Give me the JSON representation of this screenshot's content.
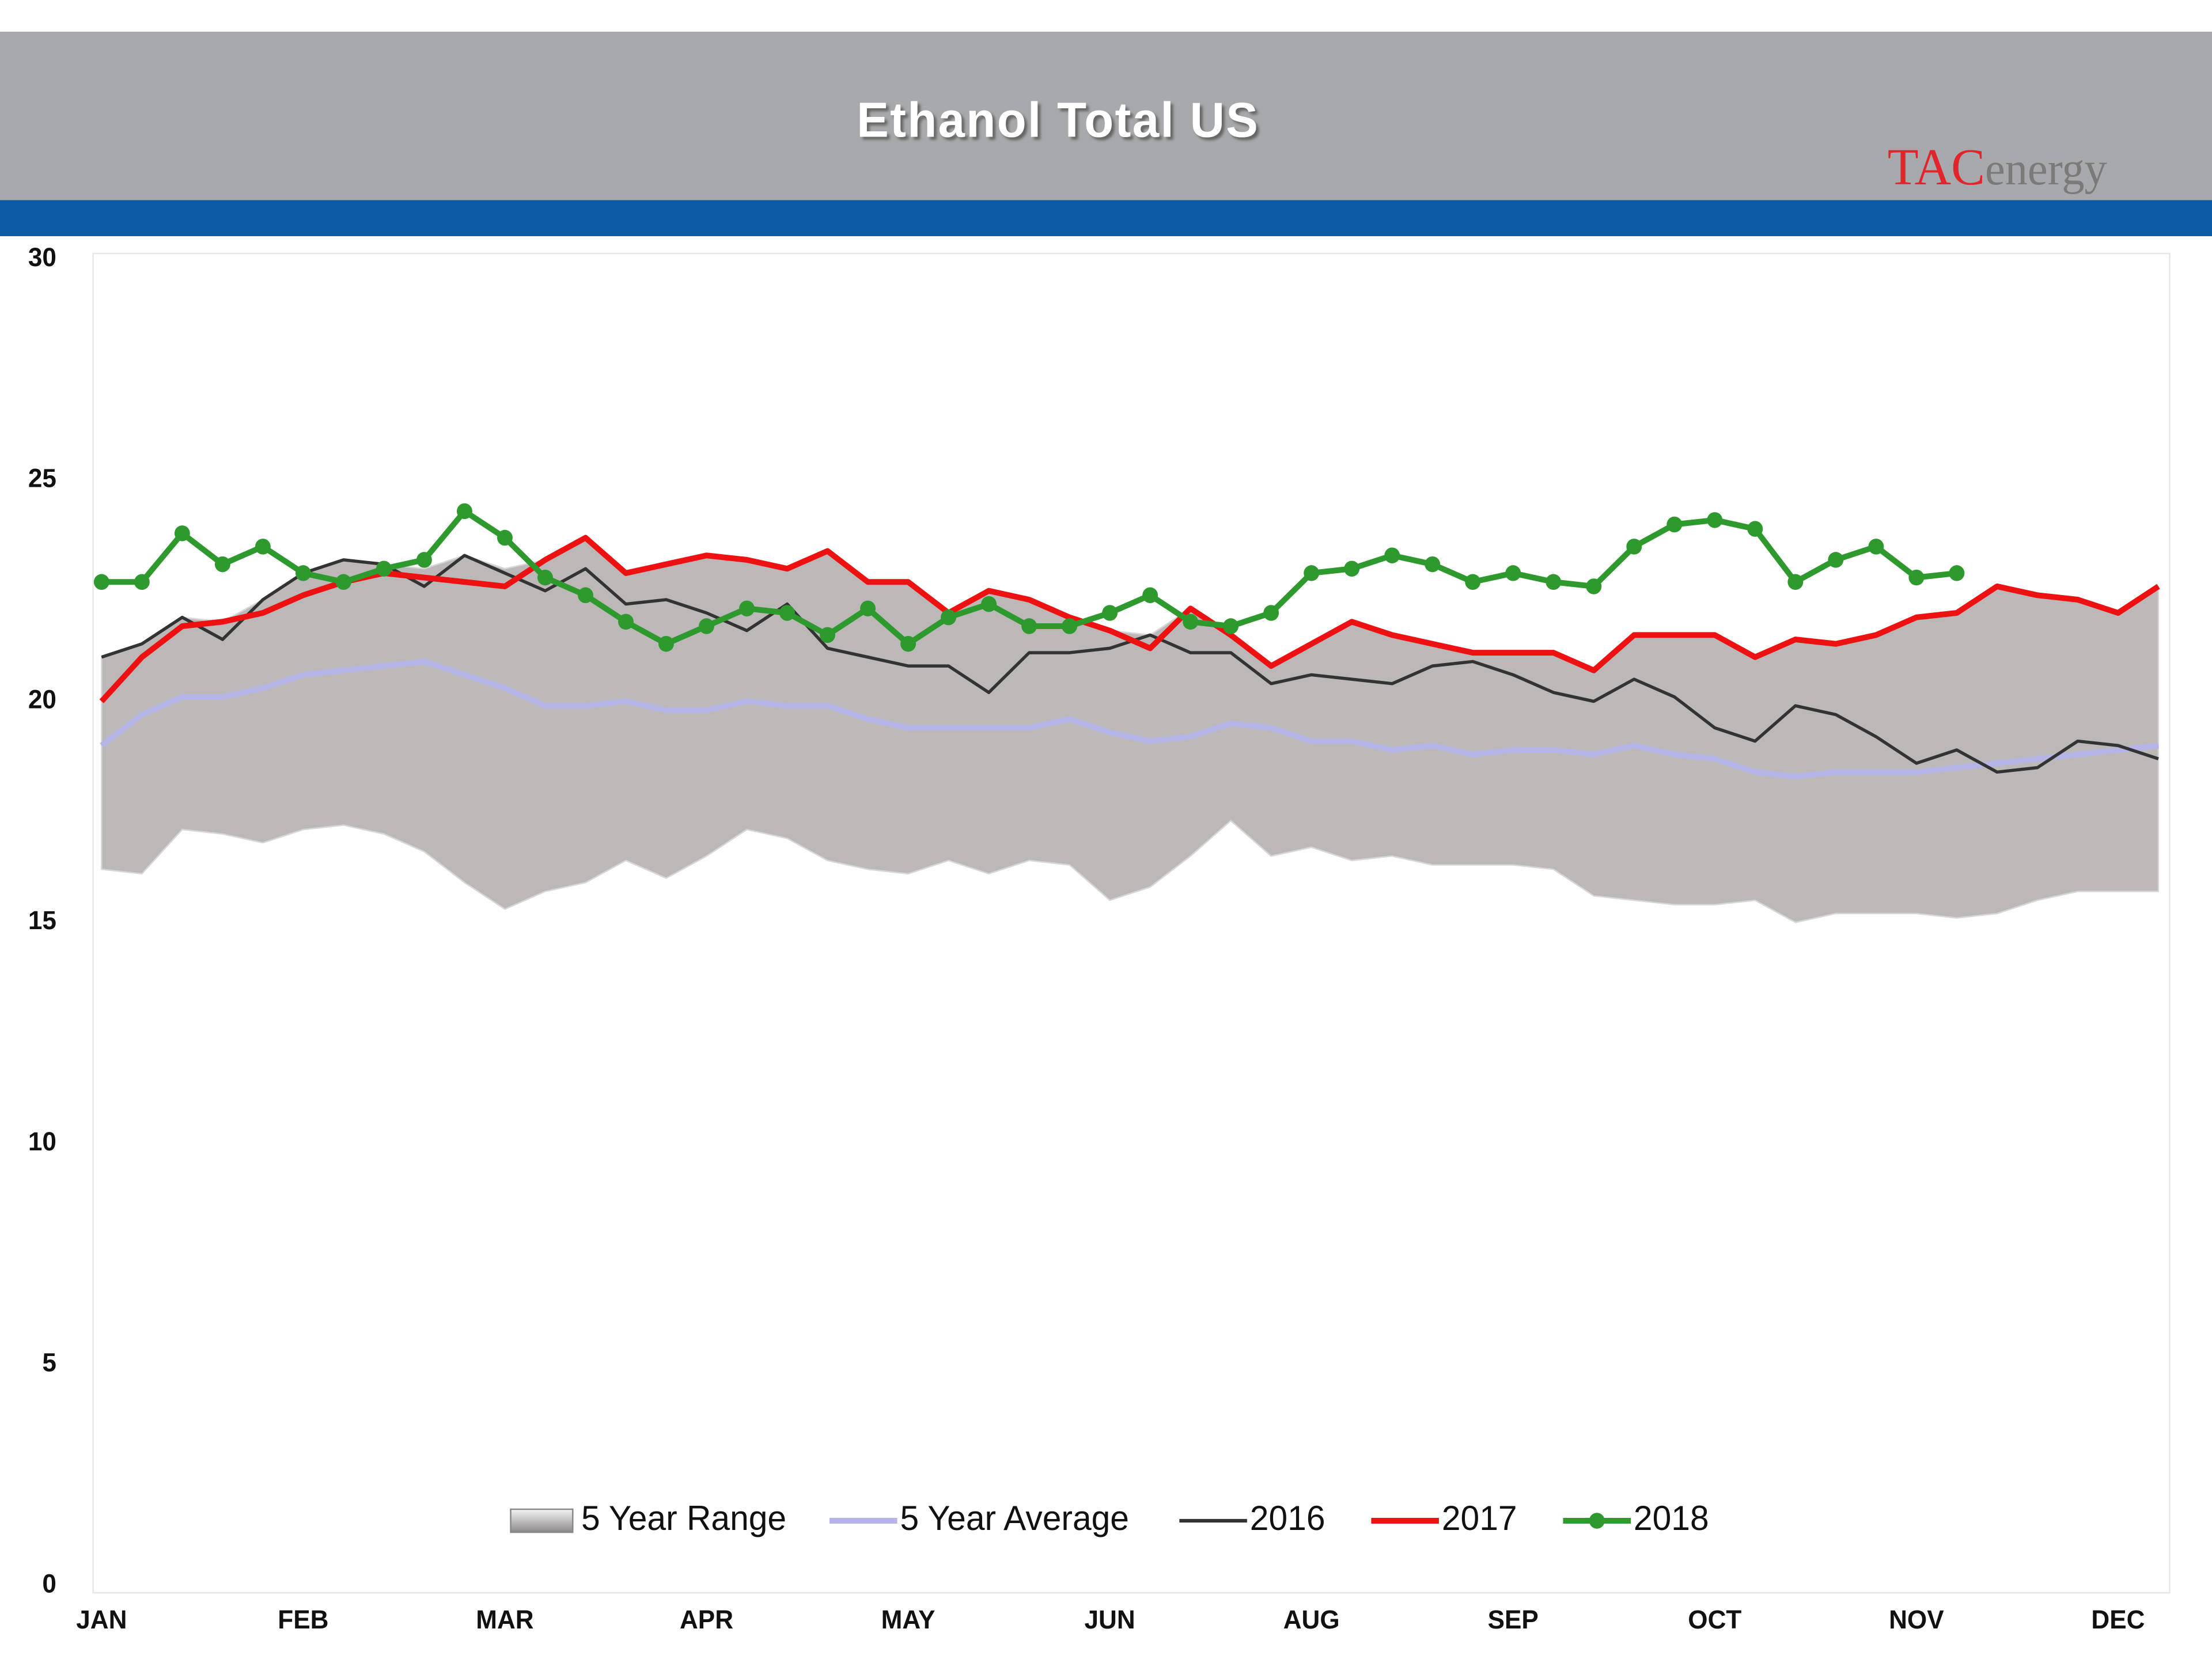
{
  "chart_data": {
    "type": "line",
    "title": "Ethanol Total US",
    "logo": {
      "red": "TAC",
      "gray": "energy"
    },
    "categories": [
      "JAN",
      null,
      null,
      null,
      null,
      "FEB",
      null,
      null,
      null,
      null,
      "MAR",
      null,
      null,
      null,
      null,
      "APR",
      null,
      null,
      null,
      null,
      "MAY",
      null,
      null,
      null,
      null,
      "JUN",
      null,
      null,
      null,
      null,
      "AUG",
      null,
      null,
      null,
      null,
      "SEP",
      null,
      null,
      null,
      null,
      "OCT",
      null,
      null,
      null,
      null,
      "NOV",
      null,
      null,
      null,
      null,
      "DEC",
      null
    ],
    "ylim": [
      0,
      30
    ],
    "yticks": [
      0,
      5,
      10,
      15,
      20,
      25,
      30
    ],
    "grid": false,
    "legend": "bottom",
    "series": [
      {
        "name": "5 Year Range",
        "kind": "range",
        "color": "#bcb8b8",
        "values": [
          21.0,
          21.3,
          21.9,
          21.8,
          22.3,
          22.9,
          23.2,
          23.1,
          23.0,
          23.3,
          23.0,
          23.2,
          23.7,
          22.9,
          23.1,
          23.3,
          23.2,
          23.0,
          23.4,
          22.7,
          22.7,
          22.0,
          22.5,
          22.3,
          21.9,
          21.6,
          21.5,
          22.1,
          21.5,
          20.8,
          21.3,
          21.8,
          21.5,
          21.3,
          21.1,
          21.1,
          21.1,
          20.7,
          21.5,
          21.5,
          21.5,
          21.0,
          21.4,
          21.3,
          21.5,
          21.9,
          22.0,
          22.6,
          22.4,
          22.3,
          22.0,
          22.6
        ],
        "low": [
          16.2,
          16.1,
          17.1,
          17.0,
          16.8,
          17.1,
          17.2,
          17.0,
          16.6,
          15.9,
          15.3,
          15.7,
          15.9,
          16.4,
          16.0,
          16.5,
          17.1,
          16.9,
          16.4,
          16.2,
          16.1,
          16.4,
          16.1,
          16.4,
          16.3,
          15.5,
          15.8,
          16.5,
          17.3,
          16.5,
          16.7,
          16.4,
          16.5,
          16.3,
          16.3,
          16.3,
          16.2,
          15.6,
          15.5,
          15.4,
          15.4,
          15.5,
          15.0,
          15.2,
          15.2,
          15.2,
          15.1,
          15.2,
          15.5,
          15.7,
          15.7,
          15.7
        ]
      },
      {
        "name": "5 Year Average",
        "color": "#b4b4e6",
        "values": [
          19.0,
          19.7,
          20.1,
          20.1,
          20.3,
          20.6,
          20.7,
          20.8,
          20.9,
          20.6,
          20.3,
          19.9,
          19.9,
          20.0,
          19.8,
          19.8,
          20.0,
          19.9,
          19.9,
          19.6,
          19.4,
          19.4,
          19.4,
          19.4,
          19.6,
          19.3,
          19.1,
          19.2,
          19.5,
          19.4,
          19.1,
          19.1,
          18.9,
          19.0,
          18.8,
          18.9,
          18.9,
          18.8,
          19.0,
          18.8,
          18.7,
          18.4,
          18.3,
          18.4,
          18.4,
          18.4,
          18.5,
          18.6,
          18.7,
          18.8,
          18.9,
          19.0
        ]
      },
      {
        "name": "2016",
        "color": "#333333",
        "values": [
          21.0,
          21.3,
          21.9,
          21.4,
          22.3,
          22.9,
          23.2,
          23.1,
          22.6,
          23.3,
          22.9,
          22.5,
          23.0,
          22.2,
          22.3,
          22.0,
          21.6,
          22.2,
          21.2,
          21.0,
          20.8,
          20.8,
          20.2,
          21.1,
          21.1,
          21.2,
          21.5,
          21.1,
          21.1,
          20.4,
          20.6,
          20.5,
          20.4,
          20.8,
          20.9,
          20.6,
          20.2,
          20.0,
          20.5,
          20.1,
          19.4,
          19.1,
          19.9,
          19.7,
          19.2,
          18.6,
          18.9,
          18.4,
          18.5,
          19.1,
          19.0,
          18.7
        ]
      },
      {
        "name": "2017",
        "color": "#ee1111",
        "values": [
          20.0,
          21.0,
          21.7,
          21.8,
          22.0,
          22.4,
          22.7,
          22.9,
          22.8,
          22.7,
          22.6,
          23.2,
          23.7,
          22.9,
          23.1,
          23.3,
          23.2,
          23.0,
          23.4,
          22.7,
          22.7,
          22.0,
          22.5,
          22.3,
          21.9,
          21.6,
          21.2,
          22.1,
          21.5,
          20.8,
          21.3,
          21.8,
          21.5,
          21.3,
          21.1,
          21.1,
          21.1,
          20.7,
          21.5,
          21.5,
          21.5,
          21.0,
          21.4,
          21.3,
          21.5,
          21.9,
          22.0,
          22.6,
          22.4,
          22.3,
          22.0,
          22.6
        ]
      },
      {
        "name": "2018",
        "color": "#2e9a2e",
        "markers": true,
        "values": [
          22.7,
          22.7,
          23.8,
          23.1,
          23.5,
          22.9,
          22.7,
          23.0,
          23.2,
          24.3,
          23.7,
          22.8,
          22.4,
          21.8,
          21.3,
          21.7,
          22.1,
          22.0,
          21.5,
          22.1,
          21.3,
          21.9,
          22.2,
          21.7,
          21.7,
          22.0,
          22.4,
          21.8,
          21.7,
          22.0,
          22.9,
          23.0,
          23.3,
          23.1,
          22.7,
          22.9,
          22.7,
          22.6,
          23.5,
          24.0,
          24.1,
          23.9,
          22.7,
          23.2,
          23.5,
          22.8,
          22.9,
          null,
          null,
          null,
          null,
          null
        ]
      }
    ]
  }
}
